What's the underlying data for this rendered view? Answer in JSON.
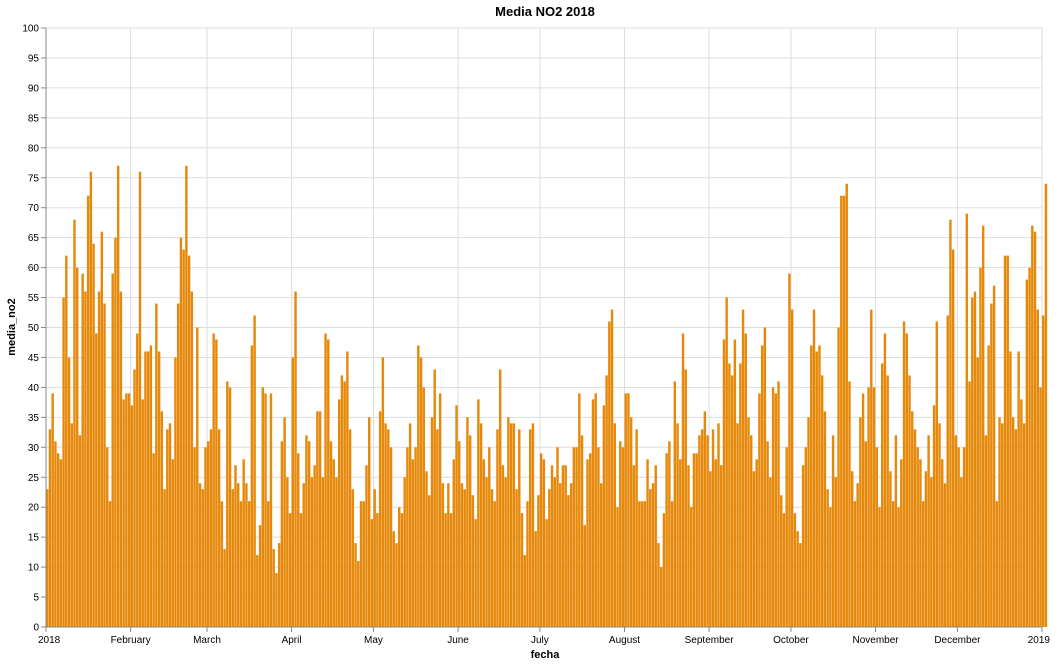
{
  "chart_data": {
    "type": "bar",
    "title": "Media NO2 2018",
    "xlabel": "fecha",
    "ylabel": "media_no2",
    "ylim": [
      0,
      100
    ],
    "y_ticks": [
      0,
      5,
      10,
      15,
      20,
      25,
      30,
      35,
      40,
      45,
      50,
      55,
      60,
      65,
      70,
      75,
      80,
      85,
      90,
      95,
      100
    ],
    "x_ticks": [
      "2018",
      "February",
      "March",
      "April",
      "May",
      "June",
      "July",
      "August",
      "September",
      "October",
      "November",
      "December",
      "2019"
    ],
    "x_range": [
      "2018-01-01",
      "2019-01-01"
    ],
    "grid": true,
    "bar_color": "#e6890b",
    "series": [
      {
        "start_date": "2018-01-01",
        "values": [
          23,
          33,
          39,
          31,
          29,
          28,
          55,
          62,
          45,
          34,
          68,
          60,
          32,
          59,
          56,
          72,
          76,
          64,
          49,
          56,
          66,
          54,
          30,
          21,
          59,
          65,
          77,
          56,
          38,
          39,
          39,
          37,
          43,
          49,
          76,
          38,
          46,
          46,
          47,
          29,
          54,
          46,
          36,
          23,
          33,
          34,
          28,
          45,
          54,
          65,
          63,
          77,
          62,
          56,
          30,
          50,
          24,
          23,
          30,
          31,
          33,
          49,
          48,
          33,
          21,
          13,
          41,
          40,
          23,
          27,
          24,
          21,
          28,
          24,
          21,
          47,
          52,
          12,
          17,
          40,
          39,
          21,
          39,
          13,
          9,
          14,
          31,
          35,
          25,
          19,
          45,
          56,
          29,
          19,
          24,
          32,
          31,
          25,
          27,
          36,
          36,
          25,
          49,
          48,
          31,
          28,
          25,
          38,
          42,
          41,
          46,
          33,
          23,
          14,
          11,
          21,
          21,
          27,
          35,
          18,
          23,
          19,
          36,
          45,
          34,
          33,
          30,
          16,
          14,
          20,
          19,
          25,
          30,
          34,
          28,
          30,
          47,
          45,
          40,
          26,
          22,
          35,
          43,
          33,
          39,
          24,
          19,
          24,
          19,
          28,
          37,
          31,
          24,
          23,
          35,
          32,
          22,
          18,
          38,
          34,
          28,
          25,
          30,
          23,
          21,
          33,
          43,
          27,
          25,
          35,
          34,
          34,
          23,
          33,
          19,
          12,
          21,
          33,
          34,
          16,
          22,
          29,
          28,
          18,
          23,
          27,
          25,
          30,
          24,
          27,
          27,
          22,
          24,
          30,
          30,
          39,
          32,
          17,
          28,
          29,
          38,
          39,
          30,
          24,
          37,
          42,
          51,
          53,
          34,
          20,
          31,
          30,
          39,
          39,
          35,
          27,
          33,
          21,
          21,
          21,
          28,
          23,
          24,
          27,
          14,
          10,
          19,
          29,
          31,
          21,
          41,
          34,
          28,
          49,
          43,
          27,
          20,
          29,
          29,
          32,
          33,
          36,
          32,
          26,
          33,
          28,
          34,
          27,
          48,
          55,
          44,
          42,
          48,
          34,
          44,
          53,
          49,
          35,
          32,
          26,
          28,
          39,
          47,
          50,
          31,
          25,
          40,
          39,
          41,
          22,
          19,
          30,
          59,
          53,
          19,
          16,
          14,
          27,
          30,
          35,
          47,
          53,
          46,
          47,
          42,
          36,
          23,
          20,
          32,
          25,
          50,
          72,
          72,
          74,
          41,
          26,
          21,
          24,
          35,
          39,
          31,
          40,
          53,
          40,
          30,
          20,
          44,
          49,
          42,
          26,
          21,
          32,
          20,
          28,
          51,
          49,
          42,
          36,
          33,
          30,
          28,
          21,
          26,
          32,
          25,
          37,
          51,
          34,
          28,
          24,
          52,
          68,
          63,
          32,
          30,
          25,
          30,
          69,
          41,
          55,
          56,
          45,
          60,
          67,
          32,
          47,
          54,
          57,
          21,
          35,
          34,
          62,
          62,
          46,
          35,
          33,
          46,
          38,
          34,
          58,
          60,
          67,
          66,
          53,
          40,
          52,
          74
        ]
      }
    ]
  }
}
